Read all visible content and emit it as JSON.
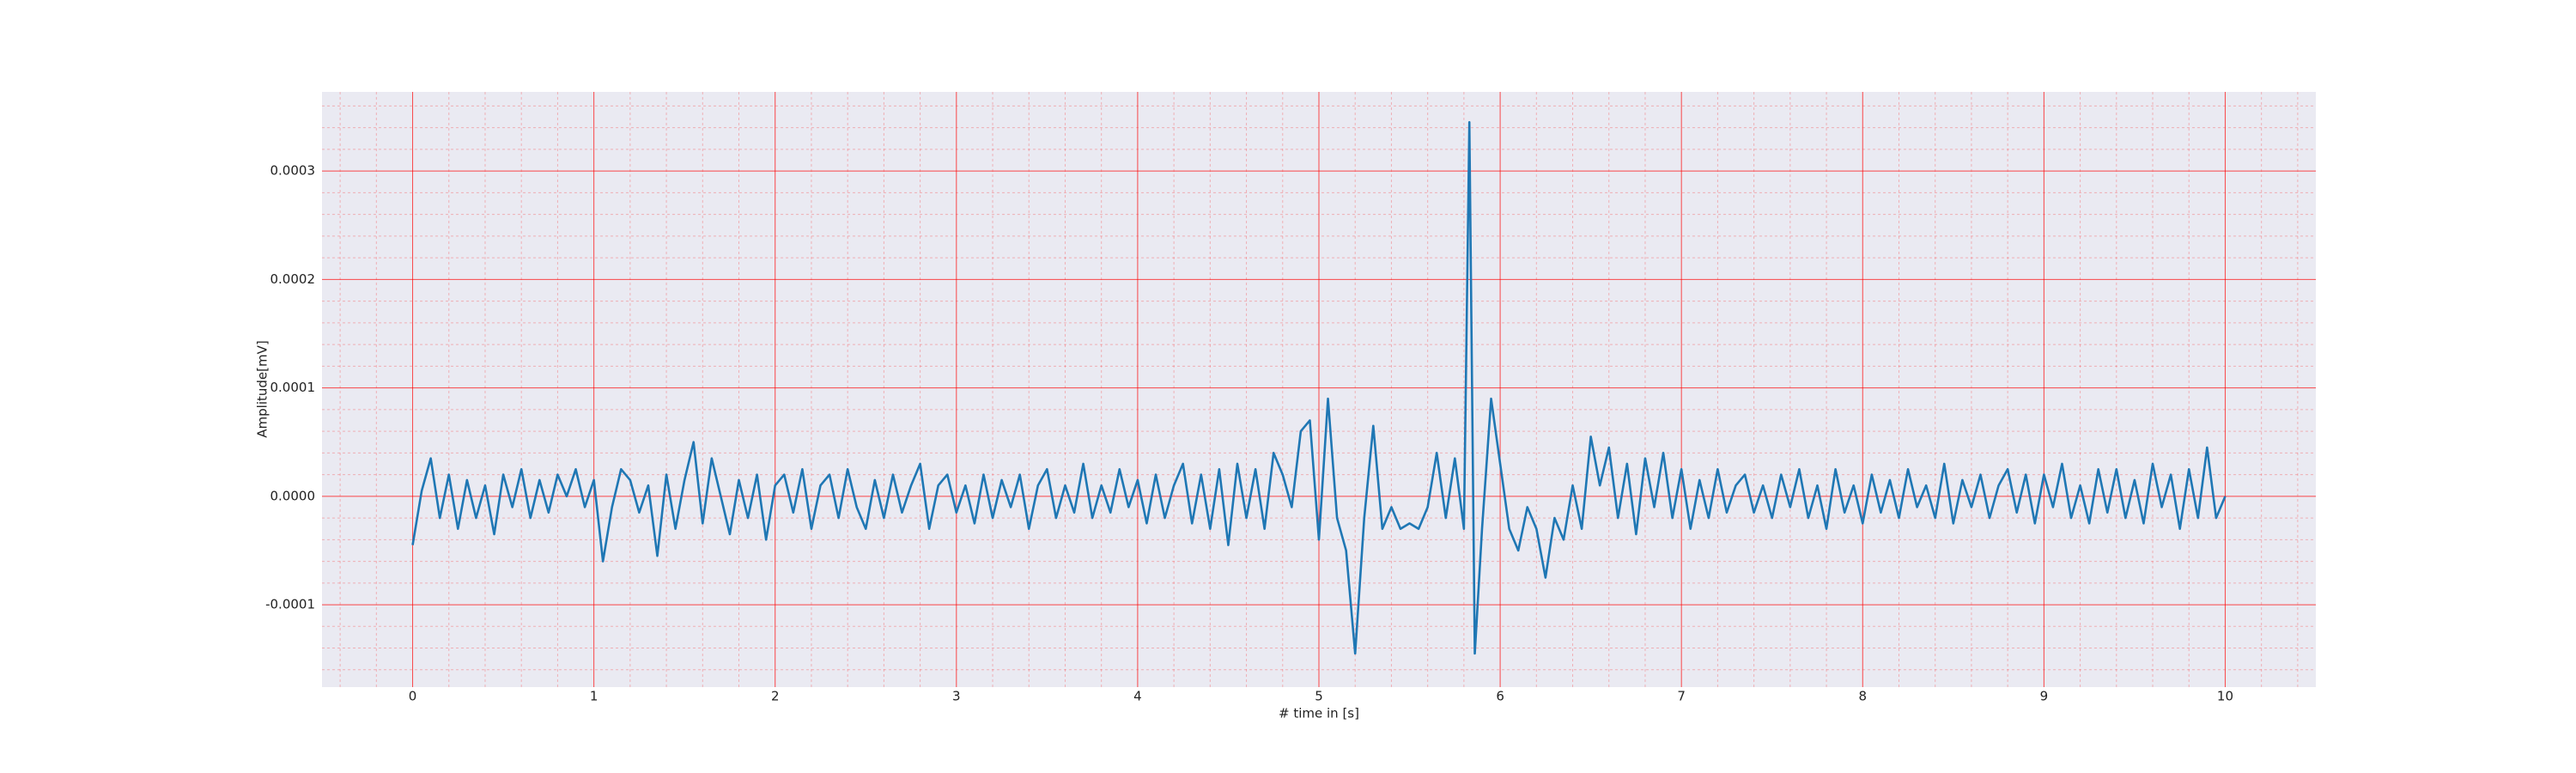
{
  "chart_data": {
    "type": "line",
    "xlabel": "# time in [s]",
    "ylabel": "Amplitude[mV]",
    "xlim": [
      -0.5,
      10.5
    ],
    "ylim": [
      -0.000176,
      0.000373
    ],
    "xticks": [
      0,
      1,
      2,
      3,
      4,
      5,
      6,
      7,
      8,
      9,
      10
    ],
    "yticks": [
      -0.0001,
      {
        "value": 0,
        "label": "0.0000"
      },
      0.0001,
      0.0002,
      0.0003
    ],
    "grid": true,
    "minor_grid": true,
    "background": "#eaeaf2",
    "grid_color": "#ff0000",
    "x": [
      0,
      0.05,
      0.1,
      0.15,
      0.2,
      0.25,
      0.3,
      0.35,
      0.4,
      0.45,
      0.5,
      0.55,
      0.6,
      0.65,
      0.7,
      0.75,
      0.8,
      0.85,
      0.9,
      0.95,
      1,
      1.05,
      1.1,
      1.15,
      1.2,
      1.25,
      1.3,
      1.35,
      1.4,
      1.45,
      1.5,
      1.55,
      1.6,
      1.65,
      1.7,
      1.75,
      1.8,
      1.85,
      1.9,
      1.95,
      2,
      2.05,
      2.1,
      2.15,
      2.2,
      2.25,
      2.3,
      2.35,
      2.4,
      2.45,
      2.5,
      2.55,
      2.6,
      2.65,
      2.7,
      2.75,
      2.8,
      2.85,
      2.9,
      2.95,
      3,
      3.05,
      3.1,
      3.15,
      3.2,
      3.25,
      3.3,
      3.35,
      3.4,
      3.45,
      3.5,
      3.55,
      3.6,
      3.65,
      3.7,
      3.75,
      3.8,
      3.85,
      3.9,
      3.95,
      4,
      4.05,
      4.1,
      4.15,
      4.2,
      4.25,
      4.3,
      4.35,
      4.4,
      4.45,
      4.5,
      4.55,
      4.6,
      4.65,
      4.7,
      4.75,
      4.8,
      4.85,
      4.9,
      4.95,
      5,
      5.05,
      5.1,
      5.15,
      5.2,
      5.25,
      5.3,
      5.35,
      5.4,
      5.45,
      5.5,
      5.55,
      5.6,
      5.65,
      5.7,
      5.75,
      5.8,
      5.83,
      5.86,
      5.9,
      5.95,
      6,
      6.05,
      6.1,
      6.15,
      6.2,
      6.25,
      6.3,
      6.35,
      6.4,
      6.45,
      6.5,
      6.55,
      6.6,
      6.65,
      6.7,
      6.75,
      6.8,
      6.85,
      6.9,
      6.95,
      7,
      7.05,
      7.1,
      7.15,
      7.2,
      7.25,
      7.3,
      7.35,
      7.4,
      7.45,
      7.5,
      7.55,
      7.6,
      7.65,
      7.7,
      7.75,
      7.8,
      7.85,
      7.9,
      7.95,
      8,
      8.05,
      8.1,
      8.15,
      8.2,
      8.25,
      8.3,
      8.35,
      8.4,
      8.45,
      8.5,
      8.55,
      8.6,
      8.65,
      8.7,
      8.75,
      8.8,
      8.85,
      8.9,
      8.95,
      9,
      9.05,
      9.1,
      9.15,
      9.2,
      9.25,
      9.3,
      9.35,
      9.4,
      9.45,
      9.5,
      9.55,
      9.6,
      9.65,
      9.7,
      9.75,
      9.8,
      9.85,
      9.9,
      9.95,
      10
    ],
    "series": [
      {
        "color": "#1f77b4",
        "values": [
          -4.5e-05,
          5e-06,
          3.5e-05,
          -2e-05,
          2e-05,
          -3e-05,
          1.5e-05,
          -2e-05,
          1e-05,
          -3.5e-05,
          2e-05,
          -1e-05,
          2.5e-05,
          -2e-05,
          1.5e-05,
          -1.5e-05,
          2e-05,
          0,
          2.5e-05,
          -1e-05,
          1.5e-05,
          -6e-05,
          -1e-05,
          2.5e-05,
          1.5e-05,
          -1.5e-05,
          1e-05,
          -5.5e-05,
          2e-05,
          -3e-05,
          1.5e-05,
          5e-05,
          -2.5e-05,
          3.5e-05,
          0,
          -3.5e-05,
          1.5e-05,
          -2e-05,
          2e-05,
          -4e-05,
          1e-05,
          2e-05,
          -1.5e-05,
          2.5e-05,
          -3e-05,
          1e-05,
          2e-05,
          -2e-05,
          2.5e-05,
          -1e-05,
          -3e-05,
          1.5e-05,
          -2e-05,
          2e-05,
          -1.5e-05,
          1e-05,
          3e-05,
          -3e-05,
          1e-05,
          2e-05,
          -1.5e-05,
          1e-05,
          -2.5e-05,
          2e-05,
          -2e-05,
          1.5e-05,
          -1e-05,
          2e-05,
          -3e-05,
          1e-05,
          2.5e-05,
          -2e-05,
          1e-05,
          -1.5e-05,
          3e-05,
          -2e-05,
          1e-05,
          -1.5e-05,
          2.5e-05,
          -1e-05,
          1.5e-05,
          -2.5e-05,
          2e-05,
          -2e-05,
          1e-05,
          3e-05,
          -2.5e-05,
          2e-05,
          -3e-05,
          2.5e-05,
          -4.5e-05,
          3e-05,
          -2e-05,
          2.5e-05,
          -3e-05,
          4e-05,
          2e-05,
          -1e-05,
          6e-05,
          7e-05,
          -4e-05,
          9e-05,
          -2e-05,
          -5e-05,
          -0.000145,
          -2e-05,
          6.5e-05,
          -3e-05,
          -1e-05,
          -3e-05,
          -2.5e-05,
          -3e-05,
          -1e-05,
          4e-05,
          -2e-05,
          3.5e-05,
          -3e-05,
          0.000345,
          -0.000145,
          -3e-05,
          9e-05,
          3e-05,
          -3e-05,
          -5e-05,
          -1e-05,
          -3e-05,
          -7.5e-05,
          -2e-05,
          -4e-05,
          1e-05,
          -3e-05,
          5.5e-05,
          1e-05,
          4.5e-05,
          -2e-05,
          3e-05,
          -3.5e-05,
          3.5e-05,
          -1e-05,
          4e-05,
          -2e-05,
          2.5e-05,
          -3e-05,
          1.5e-05,
          -2e-05,
          2.5e-05,
          -1.5e-05,
          1e-05,
          2e-05,
          -1.5e-05,
          1e-05,
          -2e-05,
          2e-05,
          -1e-05,
          2.5e-05,
          -2e-05,
          1e-05,
          -3e-05,
          2.5e-05,
          -1.5e-05,
          1e-05,
          -2.5e-05,
          2e-05,
          -1.5e-05,
          1.5e-05,
          -2e-05,
          2.5e-05,
          -1e-05,
          1e-05,
          -2e-05,
          3e-05,
          -2.5e-05,
          1.5e-05,
          -1e-05,
          2e-05,
          -2e-05,
          1e-05,
          2.5e-05,
          -1.5e-05,
          2e-05,
          -2.5e-05,
          2e-05,
          -1e-05,
          3e-05,
          -2e-05,
          1e-05,
          -2.5e-05,
          2.5e-05,
          -1.5e-05,
          2.5e-05,
          -2e-05,
          1.5e-05,
          -2.5e-05,
          3e-05,
          -1e-05,
          2e-05,
          -3e-05,
          2.5e-05,
          -2e-05,
          4.5e-05,
          -2e-05,
          0
        ]
      }
    ]
  }
}
